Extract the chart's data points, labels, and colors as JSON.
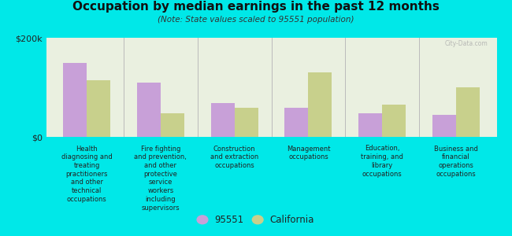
{
  "title": "Occupation by median earnings in the past 12 months",
  "subtitle": "(Note: State values scaled to 95551 population)",
  "categories": [
    "Health\ndiagnosing and\ntreating\npractitioners\nand other\ntechnical\noccupations",
    "Fire fighting\nand prevention,\nand other\nprotective\nservice\nworkers\nincluding\nsupervisors",
    "Construction\nand extraction\noccupations",
    "Management\noccupations",
    "Education,\ntraining, and\nlibrary\noccupations",
    "Business and\nfinancial\noperations\noccupations"
  ],
  "values_95551": [
    150000,
    110000,
    68000,
    58000,
    48000,
    44000
  ],
  "values_california": [
    115000,
    48000,
    58000,
    130000,
    65000,
    100000
  ],
  "bar_color_95551": "#c8a0d8",
  "bar_color_california": "#c8d08c",
  "background_color": "#00e8e8",
  "plot_bg_color": "#eaf0e0",
  "ylabel_0": "$0",
  "ylabel_200k": "$200k",
  "legend_95551": "95551",
  "legend_california": "California",
  "bar_width": 0.32,
  "ylim": [
    0,
    200000
  ],
  "watermark": "City-Data.com"
}
